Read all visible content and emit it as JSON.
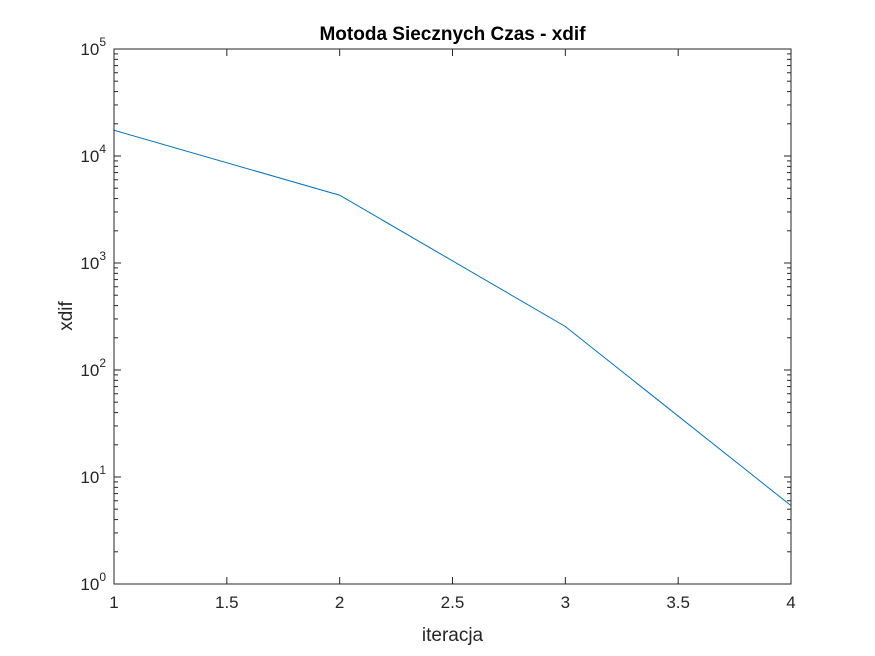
{
  "chart_data": {
    "type": "line",
    "title": "Motoda Siecznych Czas - xdif",
    "xlabel": "iteracja",
    "ylabel": "xdif",
    "xlim": [
      1,
      4
    ],
    "ylim": [
      1,
      100000
    ],
    "yscale": "log",
    "grid": false,
    "x_ticks": [
      1,
      1.5,
      2,
      2.5,
      3,
      3.5,
      4
    ],
    "x_tick_labels": [
      "1",
      "1.5",
      "2",
      "2.5",
      "3",
      "3.5",
      "4"
    ],
    "y_ticks": [
      1,
      10,
      100,
      1000,
      10000,
      100000
    ],
    "y_tick_labels": [
      {
        "base": "10",
        "exp": "0"
      },
      {
        "base": "10",
        "exp": "1"
      },
      {
        "base": "10",
        "exp": "2"
      },
      {
        "base": "10",
        "exp": "3"
      },
      {
        "base": "10",
        "exp": "4"
      },
      {
        "base": "10",
        "exp": "5"
      }
    ],
    "series": [
      {
        "color": "#0072BD",
        "x": [
          1,
          2,
          3,
          4
        ],
        "y": [
          17400,
          4300,
          255,
          5.4
        ]
      }
    ]
  }
}
